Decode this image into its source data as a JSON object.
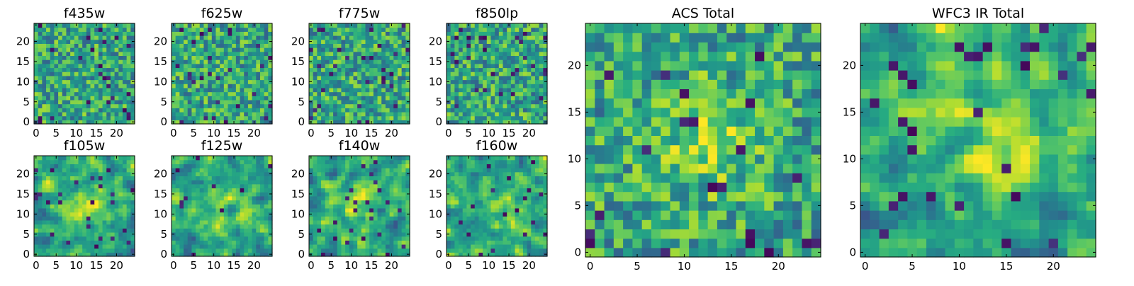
{
  "figure": {
    "panels": [
      {
        "title": "f435w",
        "xticks": [
          "0",
          "5",
          "10",
          "15",
          "20"
        ],
        "yticks": [
          "0",
          "5",
          "10",
          "15",
          "20"
        ],
        "pattern": "noise",
        "seed": 11
      },
      {
        "title": "f625w",
        "xticks": [
          "0",
          "5",
          "10",
          "15",
          "20"
        ],
        "yticks": [
          "0",
          "5",
          "10",
          "15",
          "20"
        ],
        "pattern": "noise",
        "seed": 23
      },
      {
        "title": "f775w",
        "xticks": [
          "0",
          "5",
          "10",
          "15",
          "20"
        ],
        "yticks": [
          "0",
          "5",
          "10",
          "15",
          "20"
        ],
        "pattern": "noise",
        "seed": 37
      },
      {
        "title": "f850lp",
        "xticks": [
          "0",
          "5",
          "10",
          "15",
          "20"
        ],
        "yticks": [
          "0",
          "5",
          "10",
          "15",
          "20"
        ],
        "pattern": "noise",
        "seed": 41
      },
      {
        "title": "f105w",
        "xticks": [
          "0",
          "5",
          "10",
          "15",
          "20"
        ],
        "yticks": [
          "0",
          "5",
          "10",
          "15",
          "20"
        ],
        "pattern": "smooth",
        "seed": 53
      },
      {
        "title": "f125w",
        "xticks": [
          "0",
          "5",
          "10",
          "15",
          "20"
        ],
        "yticks": [
          "0",
          "5",
          "10",
          "15",
          "20"
        ],
        "pattern": "smooth",
        "seed": 67
      },
      {
        "title": "f140w",
        "xticks": [
          "0",
          "5",
          "10",
          "15",
          "20"
        ],
        "yticks": [
          "0",
          "5",
          "10",
          "15",
          "20"
        ],
        "pattern": "smooth",
        "seed": 71
      },
      {
        "title": "f160w",
        "xticks": [
          "0",
          "5",
          "10",
          "15",
          "20"
        ],
        "yticks": [
          "0",
          "5",
          "10",
          "15",
          "20"
        ],
        "pattern": "smooth",
        "seed": 83
      },
      {
        "title": "ACS Total",
        "xticks": [
          "0",
          "5",
          "10",
          "15",
          "20"
        ],
        "yticks": [
          "0",
          "5",
          "10",
          "15",
          "20"
        ],
        "pattern": "total",
        "seed": 97
      },
      {
        "title": "WFC3 IR Total",
        "xticks": [
          "0",
          "5",
          "10",
          "15",
          "20"
        ],
        "yticks": [
          "0",
          "5",
          "10",
          "15",
          "20"
        ],
        "pattern": "totalsmooth",
        "seed": 101
      }
    ]
  },
  "chart_data": [
    {
      "type": "heatmap",
      "title": "f435w",
      "grid": [
        25,
        25
      ],
      "xlim": [
        0,
        24
      ],
      "ylim": [
        0,
        24
      ],
      "colormap": "viridis"
    },
    {
      "type": "heatmap",
      "title": "f625w",
      "grid": [
        25,
        25
      ],
      "xlim": [
        0,
        24
      ],
      "ylim": [
        0,
        24
      ],
      "colormap": "viridis"
    },
    {
      "type": "heatmap",
      "title": "f775w",
      "grid": [
        25,
        25
      ],
      "xlim": [
        0,
        24
      ],
      "ylim": [
        0,
        24
      ],
      "colormap": "viridis"
    },
    {
      "type": "heatmap",
      "title": "f850lp",
      "grid": [
        25,
        25
      ],
      "xlim": [
        0,
        24
      ],
      "ylim": [
        0,
        24
      ],
      "colormap": "viridis"
    },
    {
      "type": "heatmap",
      "title": "f105w",
      "grid": [
        25,
        25
      ],
      "xlim": [
        0,
        24
      ],
      "ylim": [
        0,
        24
      ],
      "colormap": "viridis"
    },
    {
      "type": "heatmap",
      "title": "f125w",
      "grid": [
        25,
        25
      ],
      "xlim": [
        0,
        24
      ],
      "ylim": [
        0,
        24
      ],
      "colormap": "viridis"
    },
    {
      "type": "heatmap",
      "title": "f140w",
      "grid": [
        25,
        25
      ],
      "xlim": [
        0,
        24
      ],
      "ylim": [
        0,
        24
      ],
      "colormap": "viridis"
    },
    {
      "type": "heatmap",
      "title": "f160w",
      "grid": [
        25,
        25
      ],
      "xlim": [
        0,
        24
      ],
      "ylim": [
        0,
        24
      ],
      "colormap": "viridis"
    },
    {
      "type": "heatmap",
      "title": "ACS Total",
      "grid": [
        25,
        25
      ],
      "xlim": [
        0,
        24
      ],
      "ylim": [
        0,
        24
      ],
      "colormap": "viridis"
    },
    {
      "type": "heatmap",
      "title": "WFC3 IR Total",
      "grid": [
        25,
        25
      ],
      "xlim": [
        0,
        24
      ],
      "ylim": [
        0,
        24
      ],
      "colormap": "viridis"
    }
  ]
}
